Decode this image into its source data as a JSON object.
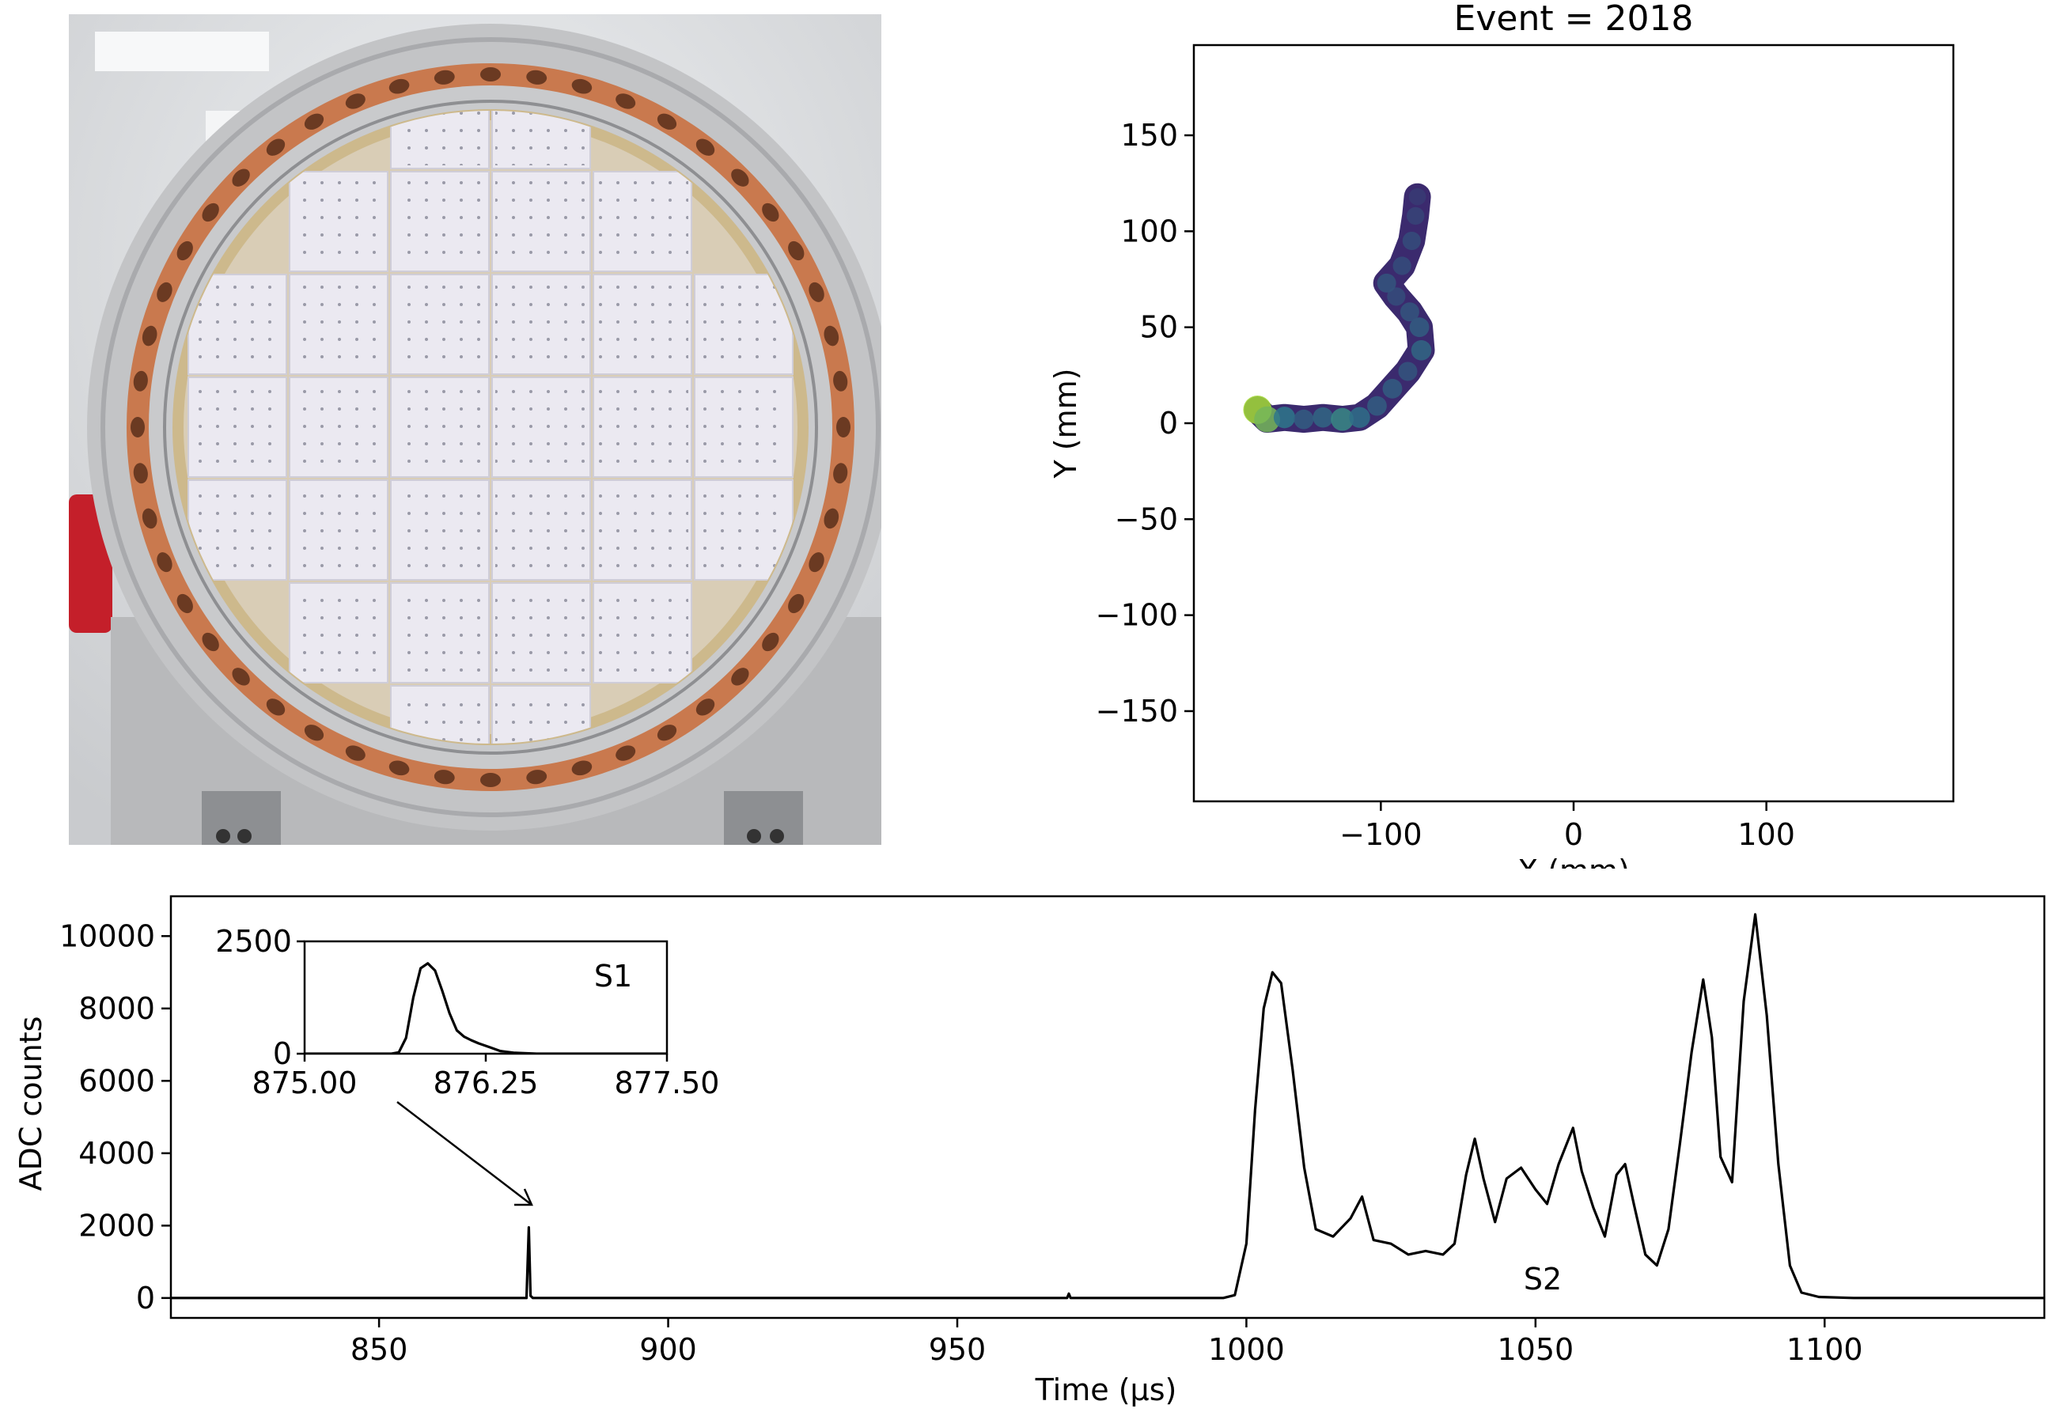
{
  "colors": {
    "axes": "#000000",
    "trace": "#000000",
    "track_low": "#3b2a6e",
    "track_mid": "#2c7f8e",
    "track_high": "#a5db36",
    "ring_copper": "#c9794e",
    "ring_steel": "#b9b9bb",
    "tile": "#eceaf2",
    "background_photo": "#d9dadc"
  },
  "photo": {
    "icon": "detector-tracking-plane-photo"
  },
  "chart_data": [
    {
      "type": "heatmap",
      "title": "Event = 2018",
      "xlabel": "X (mm)",
      "ylabel": "Y (mm)",
      "xlim": [
        -197,
        197
      ],
      "ylim": [
        -197,
        197
      ],
      "xticks": [
        -100,
        0,
        100
      ],
      "xtick_labels": [
        "−100",
        "0",
        "100"
      ],
      "yticks": [
        150,
        100,
        50,
        0,
        -50,
        -100,
        -150
      ],
      "ytick_labels": [
        "150",
        "100",
        "50",
        "0",
        "−50",
        "−100",
        "−150"
      ],
      "grid": false,
      "track_points": [
        {
          "x": -164,
          "y": 7,
          "v": 1.0
        },
        {
          "x": -159,
          "y": 2,
          "v": 0.8
        },
        {
          "x": -150,
          "y": 3,
          "v": 0.45
        },
        {
          "x": -140,
          "y": 2,
          "v": 0.3
        },
        {
          "x": -130,
          "y": 3,
          "v": 0.35
        },
        {
          "x": -120,
          "y": 2,
          "v": 0.55
        },
        {
          "x": -111,
          "y": 3,
          "v": 0.4
        },
        {
          "x": -102,
          "y": 9,
          "v": 0.3
        },
        {
          "x": -94,
          "y": 18,
          "v": 0.3
        },
        {
          "x": -86,
          "y": 27,
          "v": 0.25
        },
        {
          "x": -79,
          "y": 38,
          "v": 0.35
        },
        {
          "x": -80,
          "y": 50,
          "v": 0.3
        },
        {
          "x": -85,
          "y": 58,
          "v": 0.25
        },
        {
          "x": -92,
          "y": 66,
          "v": 0.2
        },
        {
          "x": -97,
          "y": 73,
          "v": 0.25
        },
        {
          "x": -89,
          "y": 82,
          "v": 0.2
        },
        {
          "x": -84,
          "y": 95,
          "v": 0.2
        },
        {
          "x": -82,
          "y": 108,
          "v": 0.15
        },
        {
          "x": -81,
          "y": 118,
          "v": 0.1
        }
      ]
    },
    {
      "type": "line",
      "xlabel": "Time (μs)",
      "ylabel": "ADC counts",
      "xlim": [
        814,
        1138
      ],
      "ylim": [
        -550,
        11100
      ],
      "xticks": [
        850,
        900,
        950,
        1000,
        1050,
        1100
      ],
      "yticks": [
        0,
        2000,
        4000,
        6000,
        8000,
        10000
      ],
      "grid": false,
      "series": [
        {
          "x": [
            814,
            870,
            875.5,
            875.9,
            876.2,
            876.6,
            877,
            969,
            969.3,
            969.6,
            996,
            998,
            1000,
            1001.5,
            1003,
            1004.5,
            1006,
            1008,
            1010,
            1012,
            1015,
            1018,
            1020,
            1022,
            1025,
            1028,
            1031,
            1034,
            1036,
            1038,
            1039.5,
            1041,
            1043,
            1045,
            1047.5,
            1050,
            1052,
            1054,
            1056.5,
            1058,
            1060,
            1062,
            1064,
            1065.5,
            1067,
            1069,
            1071,
            1073,
            1075,
            1077,
            1079,
            1080.5,
            1082,
            1084,
            1086,
            1088,
            1090,
            1092,
            1094,
            1096,
            1099,
            1105,
            1138
          ],
          "y": [
            0,
            0,
            0,
            1950,
            60,
            0,
            0,
            0,
            120,
            0,
            0,
            80,
            1500,
            5200,
            8000,
            9000,
            8700,
            6300,
            3600,
            1900,
            1700,
            2200,
            2800,
            1600,
            1500,
            1200,
            1300,
            1200,
            1500,
            3400,
            4400,
            3300,
            2100,
            3300,
            3600,
            3000,
            2600,
            3700,
            4700,
            3500,
            2500,
            1700,
            3400,
            3700,
            2600,
            1200,
            900,
            1900,
            4300,
            6800,
            8800,
            7200,
            3900,
            3200,
            8200,
            10600,
            7800,
            3700,
            900,
            150,
            30,
            0,
            0
          ]
        }
      ]
    },
    {
      "type": "line",
      "annotation": "inset",
      "xlim": [
        875.0,
        877.5
      ],
      "ylim": [
        0,
        2500
      ],
      "xticks": [
        875.0,
        876.25,
        877.5
      ],
      "xtick_labels": [
        "875.00",
        "876.25",
        "877.50"
      ],
      "yticks": [
        0,
        2500
      ],
      "grid": false,
      "series": [
        {
          "x": [
            875.0,
            875.6,
            875.65,
            875.7,
            875.75,
            875.8,
            875.85,
            875.9,
            875.95,
            876.0,
            876.05,
            876.1,
            876.15,
            876.2,
            876.28,
            876.35,
            876.45,
            876.6,
            876.8,
            877.5
          ],
          "y": [
            0,
            0,
            30,
            350,
            1250,
            1900,
            2010,
            1850,
            1400,
            900,
            520,
            380,
            300,
            230,
            140,
            60,
            20,
            0,
            0,
            0
          ]
        }
      ]
    }
  ],
  "annotations": {
    "s1_label": "S1",
    "s2_label": "S2"
  }
}
